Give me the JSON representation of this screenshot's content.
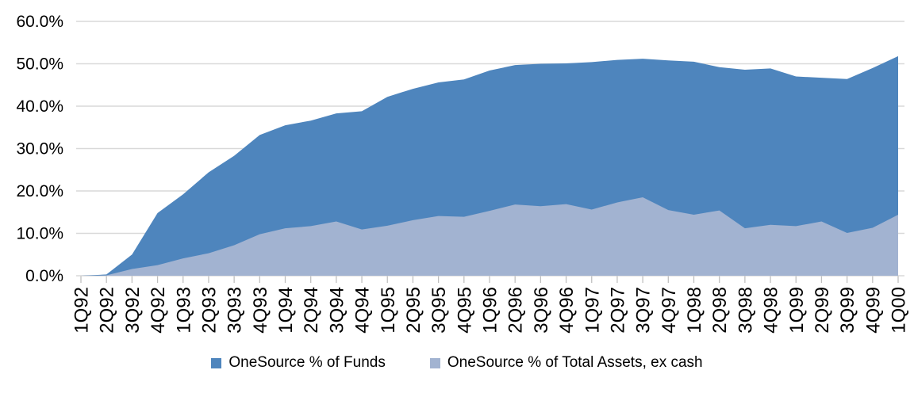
{
  "chart_data": {
    "type": "area",
    "mode": "overlapped",
    "title": "",
    "xlabel": "",
    "ylabel": "",
    "ylim": [
      0,
      60
    ],
    "ytick_step": 10,
    "ytick_labels": [
      "0.0%",
      "10.0%",
      "20.0%",
      "30.0%",
      "40.0%",
      "50.0%",
      "60.0%"
    ],
    "grid": true,
    "legend_position": "bottom",
    "categories": [
      "1Q92",
      "2Q92",
      "3Q92",
      "4Q92",
      "1Q93",
      "2Q93",
      "3Q93",
      "4Q93",
      "1Q94",
      "2Q94",
      "3Q94",
      "4Q94",
      "1Q95",
      "2Q95",
      "3Q95",
      "4Q95",
      "1Q96",
      "2Q96",
      "3Q96",
      "4Q96",
      "1Q97",
      "2Q97",
      "3Q97",
      "4Q97",
      "1Q98",
      "2Q98",
      "3Q98",
      "4Q98",
      "1Q99",
      "2Q99",
      "3Q99",
      "4Q99",
      "1Q00"
    ],
    "series": [
      {
        "name": "OneSource % of Funds",
        "color": "#4E85BD",
        "values": [
          0.0,
          0.3,
          5.0,
          14.8,
          19.2,
          24.4,
          28.3,
          33.2,
          35.5,
          36.6,
          38.3,
          38.8,
          42.2,
          44.1,
          45.6,
          46.3,
          48.4,
          49.7,
          50.0,
          50.1,
          50.4,
          50.9,
          51.2,
          50.8,
          50.5,
          49.2,
          48.6,
          48.9,
          47.0,
          46.7,
          46.4,
          49.0,
          51.8
        ]
      },
      {
        "name": "OneSource % of Total Assets, ex cash",
        "color": "#A2B3D1",
        "values": [
          0.0,
          0.1,
          1.6,
          2.5,
          4.1,
          5.3,
          7.2,
          9.8,
          11.2,
          11.7,
          12.8,
          10.9,
          11.8,
          13.1,
          14.1,
          13.9,
          15.3,
          16.8,
          16.4,
          16.9,
          15.6,
          17.3,
          18.5,
          15.5,
          14.4,
          15.4,
          11.2,
          12.0,
          11.7,
          12.8,
          10.1,
          11.3,
          14.4
        ]
      }
    ],
    "colors": {
      "gridline": "#D9D9D9",
      "axis_tick": "#BFBFBF",
      "text": "#000000",
      "background": "#FFFFFF"
    }
  }
}
